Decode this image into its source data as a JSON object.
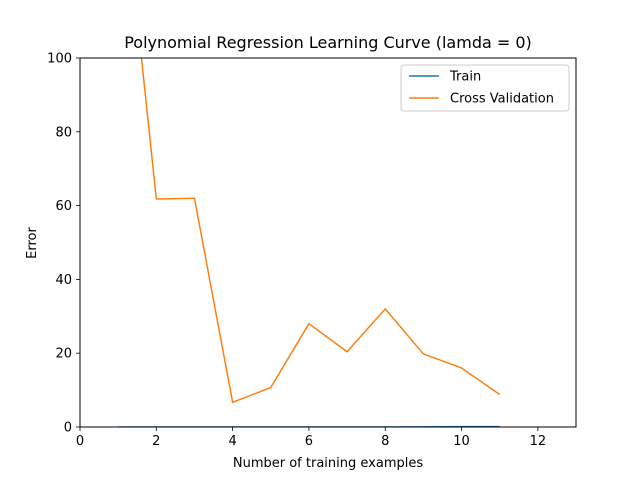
{
  "chart_data": {
    "type": "line",
    "title": "Polynomial Regression Learning Curve (lamda = 0)",
    "xlabel": "Number of training examples",
    "ylabel": "Error",
    "xlim": [
      0,
      13
    ],
    "ylim": [
      0,
      100
    ],
    "xticks": [
      0,
      2,
      4,
      6,
      8,
      10,
      12
    ],
    "yticks": [
      0,
      20,
      40,
      60,
      80,
      100
    ],
    "grid": false,
    "legend": "top-right",
    "x": [
      1,
      2,
      3,
      4,
      5,
      6,
      7,
      8,
      9,
      10,
      11
    ],
    "series": [
      {
        "name": "Train",
        "color": "#1f77b4",
        "values": [
          0,
          0,
          0,
          0,
          0,
          0,
          0,
          0,
          0.05,
          0.1,
          0.1
        ]
      },
      {
        "name": "Cross Validation",
        "color": "#ff7f0e",
        "values": [
          160,
          61.8,
          62,
          6.7,
          10.7,
          28,
          20.4,
          32,
          19.8,
          16,
          8.8
        ]
      }
    ]
  }
}
